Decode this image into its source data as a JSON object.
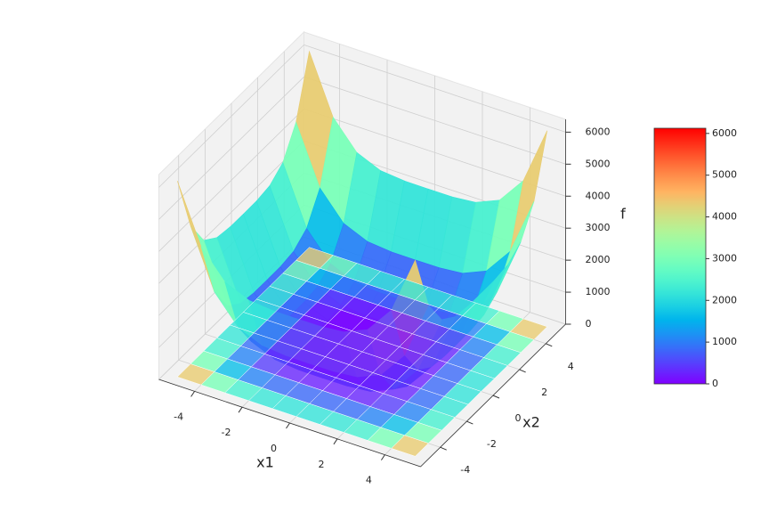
{
  "chart_data": {
    "type": "surface",
    "xlabel": "x1",
    "ylabel": "x2",
    "zlabel": "f",
    "x": [
      -5,
      -4,
      -3,
      -2,
      -1,
      0,
      1,
      2,
      3,
      4,
      5
    ],
    "y": [
      -5,
      -4,
      -3,
      -2,
      -1,
      0,
      1,
      2,
      3,
      4,
      5
    ],
    "z": [
      [
        6124,
        4316,
        3459,
        3140,
        3067,
        3062,
        3067,
        3140,
        3459,
        4316,
        6124
      ],
      [
        4316,
        2508,
        1651,
        1332,
        1259,
        1254,
        1259,
        1332,
        1651,
        2508,
        4316
      ],
      [
        3459,
        1651,
        794,
        475,
        402,
        397,
        402,
        475,
        794,
        1651,
        3459
      ],
      [
        3140,
        1332,
        475,
        156,
        83,
        78,
        83,
        156,
        475,
        1332,
        3140
      ],
      [
        3067,
        1259,
        402,
        83,
        10,
        5,
        10,
        83,
        402,
        1259,
        3067
      ],
      [
        3062,
        1254,
        397,
        78,
        5,
        0,
        5,
        78,
        397,
        1254,
        3062
      ],
      [
        3067,
        1259,
        402,
        83,
        10,
        5,
        10,
        83,
        402,
        1259,
        3067
      ],
      [
        3140,
        1332,
        475,
        156,
        83,
        78,
        83,
        156,
        475,
        1332,
        3140
      ],
      [
        3459,
        1651,
        794,
        475,
        402,
        397,
        402,
        475,
        794,
        1651,
        3459
      ],
      [
        4316,
        2508,
        1651,
        1332,
        1259,
        1254,
        1259,
        1332,
        1651,
        2508,
        4316
      ],
      [
        6124,
        4316,
        3459,
        3140,
        3067,
        3062,
        3067,
        3140,
        3459,
        4316,
        6124
      ]
    ],
    "xlim": [
      -5.5,
      5.5
    ],
    "ylim": [
      -5.5,
      5.5
    ],
    "zlim": [
      0,
      6400
    ],
    "xticks": [
      -4,
      -2,
      0,
      2,
      4
    ],
    "yticks": [
      -4,
      -2,
      0,
      2,
      4
    ],
    "zticks": [
      0,
      1000,
      2000,
      3000,
      4000,
      5000,
      6000
    ],
    "colormap": "rainbow",
    "grid": true,
    "pane_color": "#f2f2f2",
    "floor_contour": true,
    "colorbar": {
      "clim": [
        0,
        6124
      ],
      "ticks": [
        0,
        1000,
        2000,
        3000,
        4000,
        5000,
        6000
      ]
    }
  }
}
